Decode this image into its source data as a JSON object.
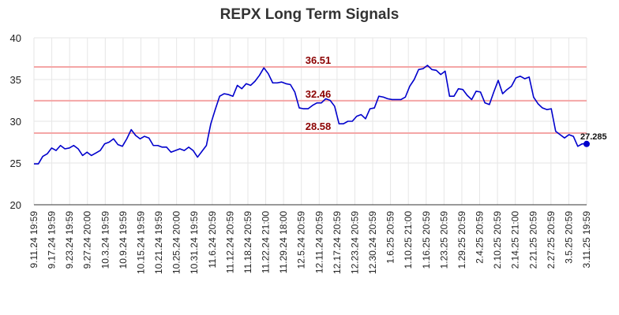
{
  "chart_data": {
    "type": "line",
    "title": "REPX Long Term Signals",
    "xlabel": "",
    "ylabel": "",
    "ylim": [
      20,
      40
    ],
    "yticks": [
      20,
      25,
      30,
      35,
      40
    ],
    "grid": true,
    "x_tick_labels": [
      "9.11.24 19:59",
      "9.17.24 19:59",
      "9.23.24 19:59",
      "9.27.24 20:00",
      "10.3.24 19:59",
      "10.9.24 19:59",
      "10.15.24 19:59",
      "10.21.24 19:59",
      "10.25.24 20:00",
      "10.31.24 19:59",
      "11.6.24 20:59",
      "11.12.24 20:59",
      "11.18.24 20:59",
      "11.22.24 21:00",
      "11.29.24 18:00",
      "12.5.24 20:59",
      "12.11.24 20:59",
      "12.17.24 20:59",
      "12.23.24 20:59",
      "12.30.24 20:59",
      "1.6.25 20:59",
      "1.10.25 21:00",
      "1.16.25 20:59",
      "1.23.25 20:59",
      "1.29.25 20:59",
      "2.4.25 20:59",
      "2.10.25 20:59",
      "2.14.25 21:00",
      "2.21.25 20:59",
      "2.27.25 20:59",
      "3.5.25 20:59",
      "3.11.25 19:59"
    ],
    "reference_lines": [
      {
        "value": 36.51,
        "label": "36.51"
      },
      {
        "value": 32.46,
        "label": "32.46"
      },
      {
        "value": 28.58,
        "label": "28.58"
      }
    ],
    "series": [
      {
        "color": "#0000cc",
        "values": [
          24.9,
          24.9,
          25.8,
          26.1,
          26.8,
          26.5,
          27.1,
          26.7,
          26.8,
          27.1,
          26.7,
          25.9,
          26.3,
          25.9,
          26.2,
          26.5,
          27.3,
          27.5,
          27.9,
          27.2,
          27.0,
          27.9,
          29.0,
          28.3,
          27.9,
          28.2,
          28.0,
          27.1,
          27.1,
          26.9,
          26.9,
          26.3,
          26.5,
          26.7,
          26.5,
          26.9,
          26.5,
          25.7,
          26.4,
          27.1,
          29.7,
          31.4,
          33.0,
          33.3,
          33.2,
          33.0,
          34.3,
          33.9,
          34.5,
          34.3,
          34.8,
          35.5,
          36.4,
          35.7,
          34.6,
          34.6,
          34.7,
          34.5,
          34.4,
          33.5,
          31.6,
          31.5,
          31.5,
          31.9,
          32.2,
          32.2,
          32.7,
          32.5,
          31.8,
          29.7,
          29.7,
          30.0,
          30.0,
          30.6,
          30.8,
          30.3,
          31.5,
          31.6,
          33.0,
          32.9,
          32.7,
          32.6,
          32.6,
          32.6,
          32.9,
          34.2,
          35.0,
          36.2,
          36.3,
          36.7,
          36.2,
          36.1,
          35.6,
          36.0,
          33.0,
          33.0,
          33.9,
          33.8,
          33.1,
          32.6,
          33.6,
          33.5,
          32.2,
          32.0,
          33.5,
          34.9,
          33.3,
          33.8,
          34.2,
          35.2,
          35.4,
          35.1,
          35.3,
          32.9,
          32.1,
          31.6,
          31.4,
          31.5,
          28.8,
          28.4,
          28.0,
          28.4,
          28.2,
          27.0,
          27.3,
          27.285
        ]
      }
    ],
    "last_value": 27.285,
    "last_value_label": "27.285"
  }
}
